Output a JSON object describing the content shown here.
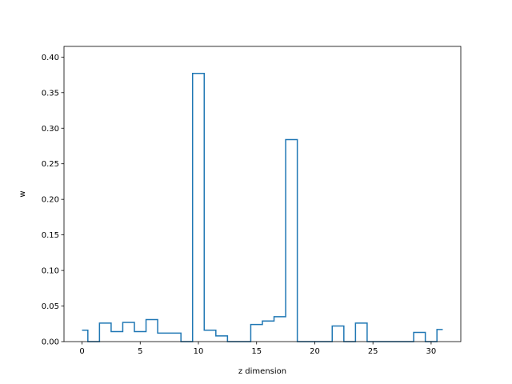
{
  "chart_data": {
    "type": "line",
    "style": "step-mid",
    "title": "",
    "xlabel": "z dimension",
    "ylabel": "w",
    "xlim": [
      -1.55,
      32.55
    ],
    "ylim": [
      0,
      0.415
    ],
    "grid": false,
    "legend": "none",
    "color": "#1f77b4",
    "x_ticks": [
      0,
      5,
      10,
      15,
      20,
      25,
      30
    ],
    "y_ticks": [
      0.0,
      0.05,
      0.1,
      0.15,
      0.2,
      0.25,
      0.3,
      0.35,
      0.4
    ],
    "x": [
      0,
      1,
      2,
      3,
      4,
      5,
      6,
      7,
      8,
      9,
      10,
      11,
      12,
      13,
      14,
      15,
      16,
      17,
      18,
      19,
      20,
      21,
      22,
      23,
      24,
      25,
      26,
      27,
      28,
      29,
      30,
      31
    ],
    "values": [
      0.016,
      0.0,
      0.026,
      0.014,
      0.027,
      0.014,
      0.031,
      0.012,
      0.012,
      0.0,
      0.377,
      0.016,
      0.008,
      0.0,
      0.0,
      0.024,
      0.029,
      0.035,
      0.284,
      0.0,
      0.0,
      0.0,
      0.022,
      0.0,
      0.026,
      0.0,
      0.0,
      0.0,
      0.0,
      0.013,
      0.0,
      0.017
    ]
  }
}
